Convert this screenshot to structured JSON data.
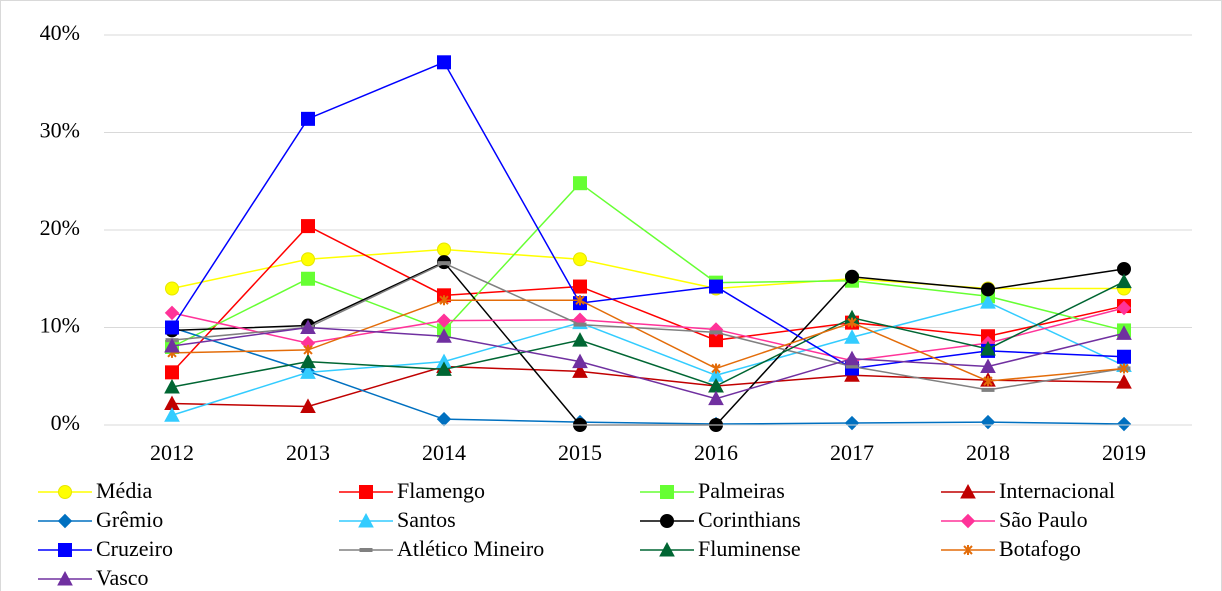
{
  "chart_data": {
    "type": "line",
    "categories": [
      "2012",
      "2013",
      "2014",
      "2015",
      "2016",
      "2017",
      "2018",
      "2019"
    ],
    "ylim": [
      0,
      40
    ],
    "yticks": [
      {
        "value": 0,
        "label": "0%"
      },
      {
        "value": 10,
        "label": "10%"
      },
      {
        "value": 20,
        "label": "20%"
      },
      {
        "value": 30,
        "label": "30%"
      },
      {
        "value": 40,
        "label": "40%"
      }
    ],
    "grid": true,
    "legend": "bottom",
    "series": [
      {
        "name": "Média",
        "color": "#ffff00",
        "marker": "circle",
        "values": [
          14,
          17,
          18,
          17,
          14,
          15,
          14,
          14
        ]
      },
      {
        "name": "Flamengo",
        "color": "#ff0000",
        "marker": "square",
        "values": [
          5.4,
          20.4,
          13.3,
          14.2,
          8.7,
          10.5,
          9.1,
          12.2
        ]
      },
      {
        "name": "Palmeiras",
        "color": "#66ff33",
        "marker": "square",
        "values": [
          8,
          15,
          9.7,
          24.8,
          14.6,
          14.8,
          13.2,
          9.7
        ]
      },
      {
        "name": "Internacional",
        "color": "#c00000",
        "marker": "triangle",
        "values": [
          2.2,
          1.9,
          6,
          5.5,
          4,
          5.1,
          4.6,
          4.4
        ]
      },
      {
        "name": "Grêmio",
        "color": "#0070c0",
        "marker": "diamond",
        "values": [
          10,
          5.5,
          0.6,
          0.3,
          0.1,
          0.2,
          0.3,
          0.1
        ]
      },
      {
        "name": "Santos",
        "color": "#33ccff",
        "marker": "triangle",
        "values": [
          1,
          5.4,
          6.5,
          10.5,
          5.1,
          9,
          12.6,
          6.1
        ]
      },
      {
        "name": "Corinthians",
        "color": "#000000",
        "marker": "circle",
        "values": [
          9.7,
          10.2,
          16.7,
          0,
          0,
          15.2,
          13.9,
          16
        ]
      },
      {
        "name": "São Paulo",
        "color": "#ff3399",
        "marker": "diamond",
        "values": [
          11.5,
          8.4,
          10.7,
          10.8,
          9.8,
          6.6,
          8.4,
          12
        ]
      },
      {
        "name": "Cruzeiro",
        "color": "#0000ff",
        "marker": "square",
        "values": [
          10,
          31.4,
          37.2,
          12.5,
          14.2,
          5.8,
          7.6,
          7
        ]
      },
      {
        "name": "Atlético Mineiro",
        "color": "#808080",
        "marker": "dash",
        "values": [
          8.7,
          10,
          16.6,
          10.3,
          9.5,
          6,
          3.6,
          5.8
        ]
      },
      {
        "name": "Fluminense",
        "color": "#006633",
        "marker": "triangle",
        "values": [
          3.9,
          6.5,
          5.7,
          8.7,
          4,
          11,
          7.8,
          14.7
        ]
      },
      {
        "name": "Botafogo",
        "color": "#e36c09",
        "marker": "star",
        "values": [
          7.4,
          7.7,
          12.8,
          12.8,
          5.8,
          10.5,
          4.5,
          5.8
        ]
      },
      {
        "name": "Vasco",
        "color": "#7030a0",
        "marker": "triangle",
        "values": [
          8.1,
          10,
          9.1,
          6.5,
          2.7,
          6.8,
          6,
          9.4
        ]
      }
    ]
  }
}
